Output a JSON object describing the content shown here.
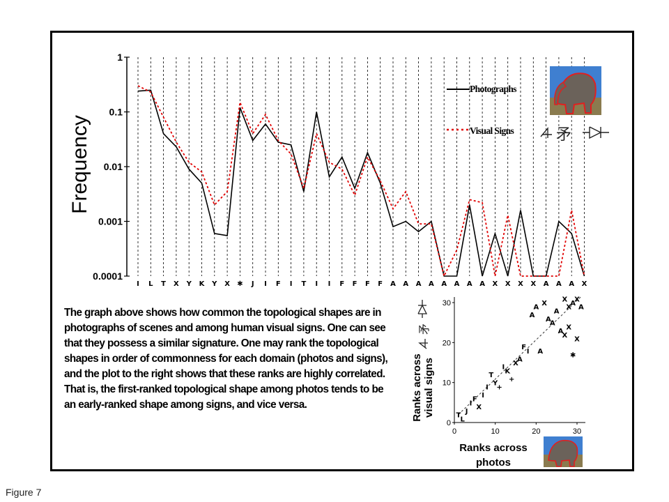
{
  "figure_label": "Figure 7",
  "caption": "The graph above shows how common the topological shapes are in photographs of scenes and among human visual signs. One can see that they possess a similar signature. One may rank the topological shapes in order of commonness for each domain (photos and signs), and the plot to the right shows that these ranks are highly correlated. That is, the first-ranked topological shape among photos tends to be an early-ranked shape among signs, and vice versa.",
  "chart_data": [
    {
      "type": "line",
      "ylabel": "Frequency",
      "yscale": "log",
      "ylim": [
        0.0001,
        1
      ],
      "yticks": [
        "0.0001",
        "0.001",
        "0.01",
        "0.1",
        "1"
      ],
      "x_glyphs": [
        "I",
        "L",
        "T",
        "X",
        "Y",
        "K",
        "Y",
        "X",
        "✱",
        "J",
        "I",
        "F",
        "I",
        "T",
        "I",
        "I",
        "F",
        "F",
        "F",
        "F",
        "A",
        "A",
        "A",
        "A",
        "A",
        "A",
        "A",
        "A",
        "X",
        "X",
        "X",
        "X",
        "A",
        "A",
        "A",
        "X"
      ],
      "grid": "vertical dashed lines",
      "legend_position": "top-right",
      "colors": {
        "photographs": "#000000",
        "visual_signs": "#e00000"
      },
      "series": [
        {
          "name": "Photographs",
          "style": "solid",
          "values": [
            0.24,
            0.25,
            0.04,
            0.023,
            0.009,
            0.005,
            0.0006,
            0.00055,
            0.12,
            0.03,
            0.06,
            0.028,
            0.025,
            0.0035,
            0.1,
            0.0065,
            0.015,
            0.004,
            0.018,
            0.005,
            0.0008,
            0.001,
            0.00065,
            0.001,
            0.0001,
            0.0001,
            0.002,
            0.0001,
            0.0006,
            0.0001,
            0.0016,
            0.0001,
            0.0001,
            0.001,
            0.0006,
            0.0001
          ]
        },
        {
          "name": "Visual Signs",
          "style": "dotted",
          "values": [
            0.3,
            0.23,
            0.08,
            0.028,
            0.012,
            0.008,
            0.002,
            0.0035,
            0.15,
            0.04,
            0.09,
            0.03,
            0.017,
            0.004,
            0.04,
            0.012,
            0.009,
            0.003,
            0.015,
            0.0055,
            0.0017,
            0.0035,
            0.0009,
            0.0009,
            0.0001,
            0.0003,
            0.0025,
            0.0022,
            0.0001,
            0.0013,
            0.0001,
            0.0001,
            0.0001,
            0.0001,
            0.0016,
            0.0001
          ]
        }
      ]
    },
    {
      "type": "scatter",
      "xlabel": "Ranks across photos",
      "ylabel": "Ranks across visual signs",
      "xlim": [
        0,
        30
      ],
      "ylim": [
        0,
        30
      ],
      "xticks": [
        "0",
        "10",
        "20",
        "30"
      ],
      "yticks": [
        "0",
        "10",
        "20",
        "30"
      ],
      "trendline": "dashed diagonal",
      "points": [
        {
          "x": 1,
          "y": 2,
          "m": "T"
        },
        {
          "x": 2,
          "y": 1,
          "m": "L"
        },
        {
          "x": 3,
          "y": 3,
          "m": "J"
        },
        {
          "x": 4,
          "y": 5,
          "m": "I"
        },
        {
          "x": 5,
          "y": 6,
          "m": "F"
        },
        {
          "x": 6,
          "y": 4,
          "m": "X"
        },
        {
          "x": 7,
          "y": 7,
          "m": "I"
        },
        {
          "x": 8,
          "y": 9,
          "m": "I"
        },
        {
          "x": 9,
          "y": 12,
          "m": "T"
        },
        {
          "x": 10,
          "y": 10,
          "m": "Y"
        },
        {
          "x": 11,
          "y": 9,
          "m": "+"
        },
        {
          "x": 12,
          "y": 14,
          "m": "I"
        },
        {
          "x": 13,
          "y": 13,
          "m": "K"
        },
        {
          "x": 14,
          "y": 11,
          "m": "+"
        },
        {
          "x": 15,
          "y": 15,
          "m": "X"
        },
        {
          "x": 16,
          "y": 16,
          "m": "A"
        },
        {
          "x": 17,
          "y": 19,
          "m": "F"
        },
        {
          "x": 18,
          "y": 18,
          "m": "I"
        },
        {
          "x": 19,
          "y": 27,
          "m": "A"
        },
        {
          "x": 20,
          "y": 29,
          "m": "A"
        },
        {
          "x": 21,
          "y": 18,
          "m": "A"
        },
        {
          "x": 22,
          "y": 30,
          "m": "X"
        },
        {
          "x": 23,
          "y": 26,
          "m": "A"
        },
        {
          "x": 24,
          "y": 25,
          "m": "A"
        },
        {
          "x": 25,
          "y": 28,
          "m": "A"
        },
        {
          "x": 26,
          "y": 23,
          "m": "A"
        },
        {
          "x": 27,
          "y": 22,
          "m": "X"
        },
        {
          "x": 27,
          "y": 31,
          "m": "X"
        },
        {
          "x": 28,
          "y": 29,
          "m": "X"
        },
        {
          "x": 28,
          "y": 24,
          "m": "X"
        },
        {
          "x": 29,
          "y": 30,
          "m": "A"
        },
        {
          "x": 29,
          "y": 17,
          "m": "✱"
        },
        {
          "x": 30,
          "y": 21,
          "m": "X"
        },
        {
          "x": 30,
          "y": 31,
          "m": "X"
        },
        {
          "x": 31,
          "y": 29,
          "m": "A"
        }
      ]
    }
  ]
}
